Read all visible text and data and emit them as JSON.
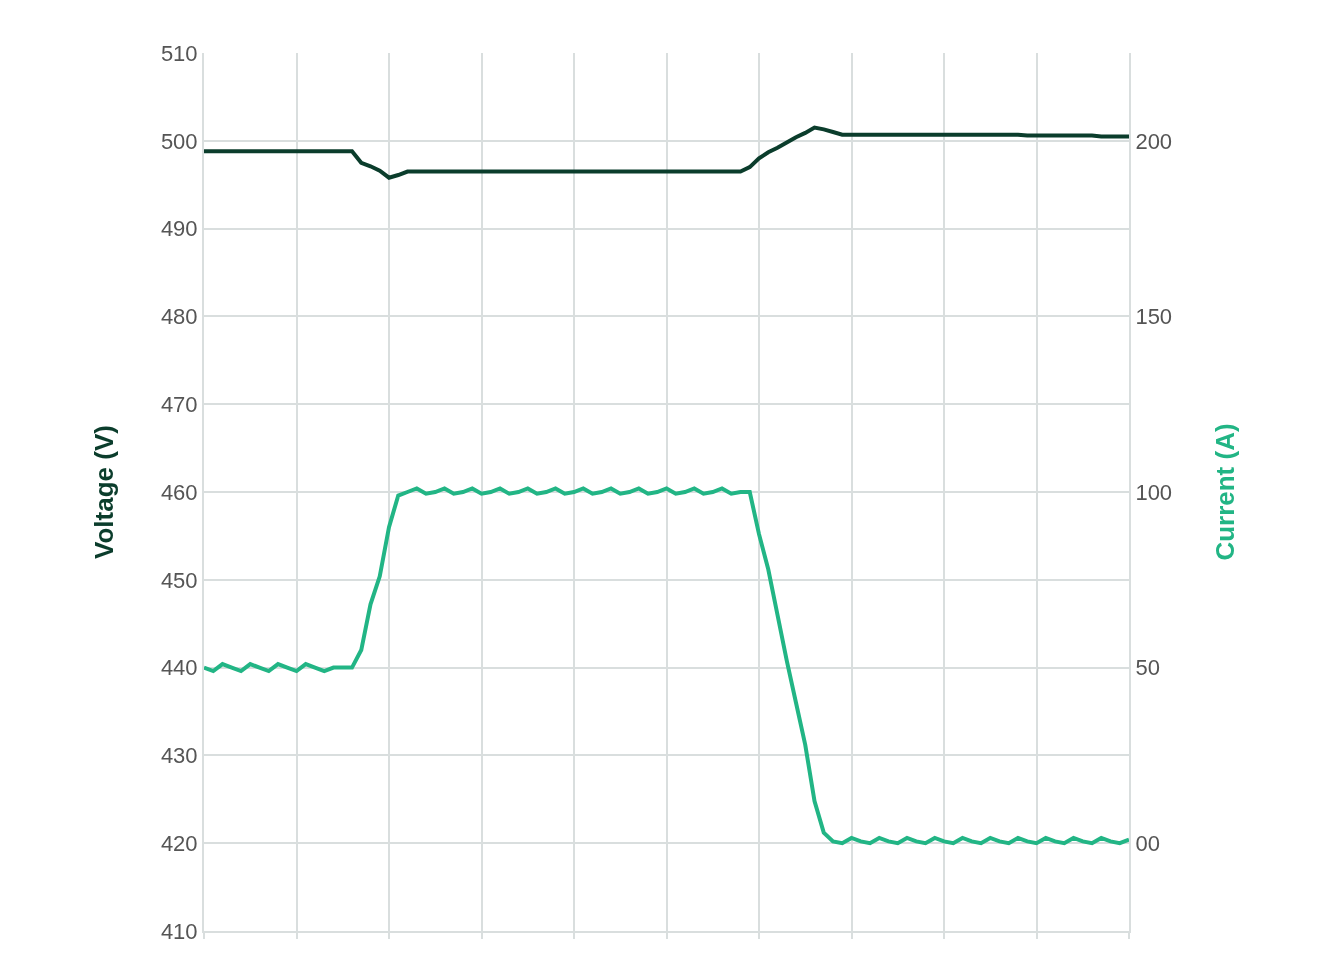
{
  "chart_data": {
    "type": "line",
    "ylabel": "Voltage (V)",
    "y2label": "Current (A)",
    "categories": [
      null,
      null,
      null,
      null,
      null,
      null,
      null,
      null,
      null,
      null,
      null,
      null,
      null,
      null,
      null,
      null,
      null,
      null,
      null,
      null,
      null,
      null,
      null,
      null,
      null,
      null,
      null,
      null,
      null,
      null,
      null,
      null,
      null,
      null,
      null,
      null,
      null,
      null,
      null,
      null,
      null,
      null,
      null,
      null,
      null,
      null,
      null,
      null,
      null,
      null,
      null,
      null,
      null,
      null,
      null,
      null,
      null,
      null,
      null,
      null,
      null,
      null,
      null,
      null,
      null,
      null,
      null,
      null,
      null,
      null,
      null,
      null,
      null,
      null,
      null,
      null,
      null,
      null,
      null,
      null,
      null,
      null,
      null,
      null,
      null,
      null,
      null,
      null,
      null,
      null,
      null,
      null,
      null,
      null,
      null,
      null,
      null,
      null,
      null,
      null,
      null
    ],
    "ylim": [
      410,
      510
    ],
    "yticks": [
      410,
      420,
      430,
      440,
      450,
      460,
      470,
      480,
      490,
      500,
      510
    ],
    "y2lim": [
      -25,
      225
    ],
    "y2ticks": [
      {
        "value": 0,
        "label": "00"
      },
      50,
      100,
      150,
      200
    ],
    "grid": true,
    "marker": "none",
    "line_style": "solid",
    "series": [
      {
        "color": "#0b3d2c",
        "values": [
          498.8,
          498.8,
          498.8,
          498.8,
          498.8,
          498.8,
          498.8,
          498.8,
          498.8,
          498.8,
          498.8,
          498.8,
          498.8,
          498.8,
          498.8,
          498.8,
          498.8,
          497.5,
          497.1,
          496.6,
          495.8,
          496.1,
          496.5,
          496.5,
          496.5,
          496.5,
          496.5,
          496.5,
          496.5,
          496.5,
          496.5,
          496.5,
          496.5,
          496.5,
          496.5,
          496.5,
          496.5,
          496.5,
          496.5,
          496.5,
          496.5,
          496.5,
          496.5,
          496.5,
          496.5,
          496.5,
          496.5,
          496.5,
          496.5,
          496.5,
          496.5,
          496.5,
          496.5,
          496.5,
          496.5,
          496.5,
          496.5,
          496.5,
          496.5,
          497.0,
          498.0,
          498.7,
          499.2,
          499.8,
          500.4,
          500.9,
          501.5,
          501.3,
          501.0,
          500.7,
          500.7,
          500.7,
          500.7,
          500.7,
          500.7,
          500.7,
          500.7,
          500.7,
          500.7,
          500.7,
          500.7,
          500.7,
          500.7,
          500.7,
          500.7,
          500.7,
          500.7,
          500.7,
          500.7,
          500.6,
          500.6,
          500.6,
          500.6,
          500.6,
          500.6,
          500.6,
          500.6,
          500.5,
          500.5,
          500.5,
          500.5
        ]
      },
      {
        "color": "#22b585",
        "axis": "y2",
        "values": [
          50,
          49,
          51,
          50,
          49,
          51,
          50,
          49,
          51,
          50,
          49,
          51,
          50,
          49,
          50,
          50,
          50,
          55,
          68,
          76,
          90,
          99,
          100,
          101,
          99.5,
          100,
          101,
          99.5,
          100,
          101,
          99.5,
          100,
          101,
          99.5,
          100,
          101,
          99.5,
          100,
          101,
          99.5,
          100,
          101,
          99.5,
          100,
          101,
          99.5,
          100,
          101,
          99.5,
          100,
          101,
          99.5,
          100,
          101,
          99.5,
          100,
          101,
          99.5,
          100,
          100,
          88,
          78,
          65,
          52,
          40,
          28,
          12,
          3,
          0.5,
          0,
          1.5,
          0.5,
          0,
          1.5,
          0.5,
          0,
          1.5,
          0.5,
          0,
          1.5,
          0.5,
          0,
          1.5,
          0.5,
          0,
          1.5,
          0.5,
          0,
          1.5,
          0.5,
          0,
          1.5,
          0.5,
          0,
          1.5,
          0.5,
          0,
          1.5,
          0.5,
          0,
          1
        ]
      }
    ]
  }
}
